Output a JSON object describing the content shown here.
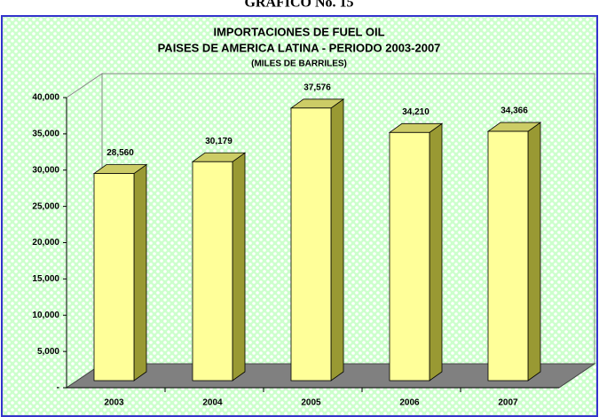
{
  "chart_data": {
    "type": "bar3d",
    "header": "GRAFICO No. 15",
    "title": "IMPORTACIONES DE FUEL OIL",
    "subtitle": "PAISES DE AMERICA LATINA - PERIODO 2003-2007",
    "unit_label": "(MILES DE BARRILES)",
    "categories": [
      "2003",
      "2004",
      "2005",
      "2006",
      "2007"
    ],
    "values": [
      28560,
      30179,
      37576,
      34210,
      34366
    ],
    "value_labels": [
      "28,560",
      "30,179",
      "37,576",
      "34,210",
      "34,366"
    ],
    "color": "#ffff99",
    "ylim": [
      0,
      40000
    ],
    "yticks": [
      {
        "value": 0,
        "label": "-"
      },
      {
        "value": 5000,
        "label": "5,000"
      },
      {
        "value": 10000,
        "label": "10,000"
      },
      {
        "value": 15000,
        "label": "15,000"
      },
      {
        "value": 20000,
        "label": "20,000"
      },
      {
        "value": 25000,
        "label": "25,000"
      },
      {
        "value": 30000,
        "label": "30,000"
      },
      {
        "value": 35000,
        "label": "35,000"
      },
      {
        "value": 40000,
        "label": "40,000"
      }
    ]
  }
}
